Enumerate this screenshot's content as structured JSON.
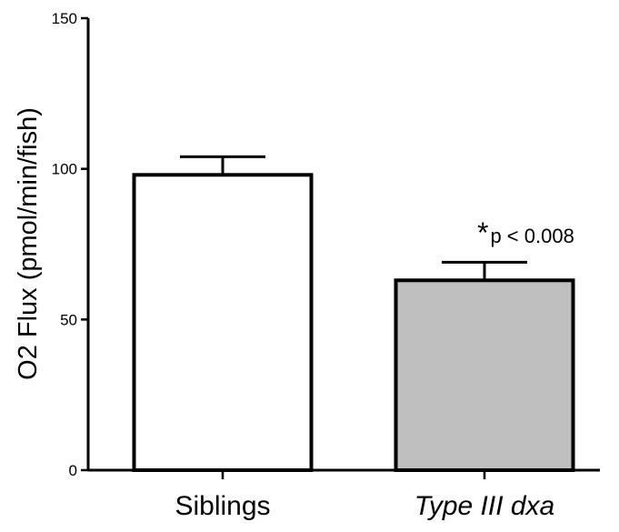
{
  "chart_data": {
    "type": "bar",
    "categories": [
      "Siblings",
      "Type III dxa"
    ],
    "category_italic": [
      false,
      true
    ],
    "values": [
      98,
      63
    ],
    "errors": [
      6,
      6
    ],
    "bar_colors": [
      "#ffffff",
      "#bfbfbf"
    ],
    "ylabel": "O2 Flux (pmol/min/fish)",
    "xlabel": "",
    "ylim": [
      0,
      150
    ],
    "yticks": [
      0,
      50,
      100,
      150
    ],
    "annotation": {
      "star": "*",
      "text": "p < 0.008",
      "category_index": 1
    },
    "grid": false,
    "legend": "none"
  }
}
